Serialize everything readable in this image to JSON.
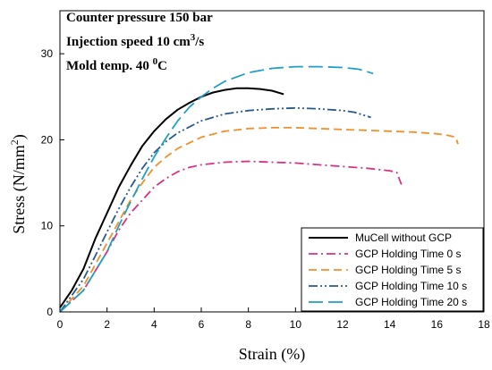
{
  "chart_data": {
    "type": "line",
    "xlabel": "Strain (%)",
    "ylabel_main": "Stress (N/mm",
    "ylabel_sup": "2",
    "ylabel_tail": ")",
    "xlim": [
      0,
      18
    ],
    "ylim": [
      0,
      35
    ],
    "xticks": [
      "0",
      "2",
      "4",
      "6",
      "8",
      "10",
      "12",
      "14",
      "16",
      "18"
    ],
    "yticks": [
      "0",
      "10",
      "20",
      "30"
    ],
    "grid": false,
    "legend_position": "bottom-right",
    "annotations": {
      "line1": "Counter pressure 150 bar",
      "line2_main": "Injection speed 10 cm",
      "line2_sup": "3",
      "line2_tail": "/s",
      "line3_main": "Mold temp. 40 ",
      "line3_sup": "0",
      "line3_tail": "C"
    },
    "series": [
      {
        "name": "MuCell without GCP",
        "color": "#000000",
        "dash": "solid",
        "x": [
          0,
          0.5,
          1,
          1.5,
          2,
          2.5,
          3,
          3.5,
          4,
          4.5,
          5,
          5.5,
          6,
          6.5,
          7,
          7.5,
          8,
          8.5,
          9,
          9.5
        ],
        "y": [
          0.5,
          2.5,
          5,
          8.5,
          11.5,
          14.5,
          17,
          19.3,
          21,
          22.4,
          23.5,
          24.3,
          25,
          25.5,
          25.8,
          26,
          26,
          25.9,
          25.7,
          25.3
        ]
      },
      {
        "name": "GCP Holding Time 0 s",
        "color": "#d63384",
        "dash": "dashdot",
        "x": [
          0,
          1,
          2,
          2.5,
          3,
          3.5,
          4,
          4.5,
          5,
          5.5,
          6,
          7,
          8,
          9,
          10,
          11,
          12,
          13,
          14,
          14.3,
          14.4,
          14.5
        ],
        "y": [
          0,
          2.5,
          7,
          9.5,
          11.5,
          13,
          14.5,
          15.5,
          16.3,
          16.8,
          17.1,
          17.4,
          17.5,
          17.4,
          17.3,
          17.1,
          16.9,
          16.7,
          16.4,
          16.2,
          15.5,
          14.8
        ]
      },
      {
        "name": "GCP Holding Time 5 s",
        "color": "#f0902a",
        "dash": "dash",
        "x": [
          0,
          1,
          2,
          3,
          3.5,
          4,
          4.5,
          5,
          6,
          7,
          8,
          9,
          10,
          11,
          12,
          13,
          14,
          15,
          16,
          16.5,
          16.8,
          16.9
        ],
        "y": [
          0,
          3,
          8,
          13,
          15,
          16.8,
          18,
          19,
          20.3,
          21,
          21.3,
          21.4,
          21.4,
          21.3,
          21.2,
          21.1,
          21,
          20.9,
          20.7,
          20.5,
          20.3,
          19.5
        ]
      },
      {
        "name": "GCP Holding Time 10 s",
        "color": "#2a5a8a",
        "dash": "dashdotdot",
        "x": [
          0,
          1,
          1.5,
          2,
          2.5,
          3,
          3.5,
          4,
          4.5,
          5,
          6,
          7,
          8,
          9,
          10,
          11,
          12,
          12.5,
          13.2
        ],
        "y": [
          0,
          3.8,
          6.5,
          9.3,
          12,
          14.5,
          16.7,
          18.5,
          19.8,
          20.8,
          22.2,
          23,
          23.4,
          23.6,
          23.7,
          23.6,
          23.4,
          23.2,
          22.6
        ]
      },
      {
        "name": "GCP Holding Time 20 s",
        "color": "#1f9fc7",
        "dash": "longdash",
        "x": [
          0,
          1,
          2,
          2.5,
          3,
          3.5,
          4,
          4.5,
          5,
          5.5,
          6,
          6.5,
          7,
          8,
          9,
          10,
          11,
          12,
          12.7,
          13.3
        ],
        "y": [
          0,
          2.5,
          7,
          10,
          12.8,
          15.5,
          18,
          20.2,
          22.2,
          23.8,
          25,
          26,
          26.8,
          27.8,
          28.3,
          28.5,
          28.5,
          28.4,
          28.2,
          27.7
        ]
      }
    ]
  }
}
